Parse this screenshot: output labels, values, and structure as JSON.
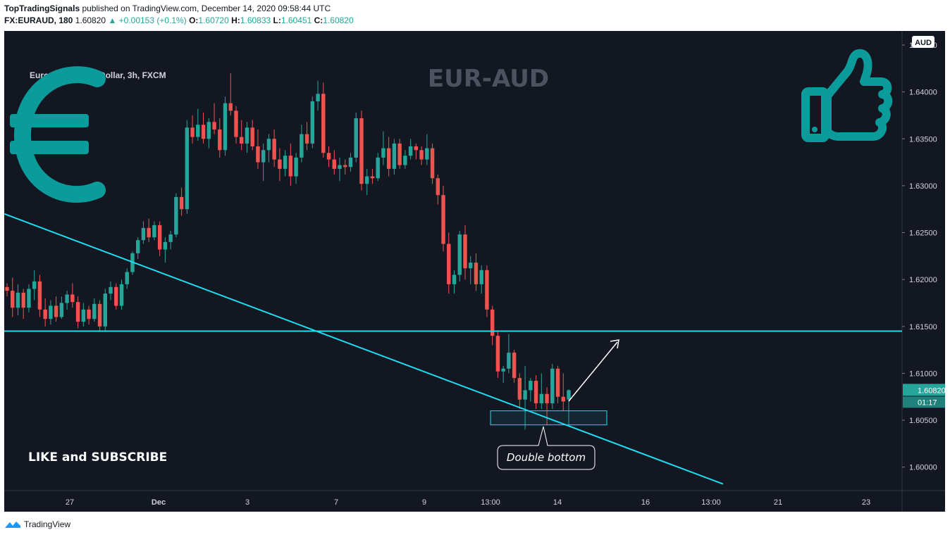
{
  "header": {
    "author": "TopTradingSignals",
    "published_text": "published on TradingView.com, December 14, 2020 09:58:44 UTC",
    "symbol": "FX:EURAUD, 180",
    "last": "1.60820",
    "change": "▲ +0.00153 (+0.1%)",
    "open_label": "O:",
    "open": "1.60720",
    "high_label": "H:",
    "high": "1.60833",
    "low_label": "L:",
    "low": "1.60451",
    "close_label": "C:",
    "close": "1.60820"
  },
  "chart_title": "Euro / Australian Dollar, 3h, FXCM",
  "watermark_text": "EUR-AUD",
  "like_text": "LIKE and SUBSCRIBE",
  "callout_text": "Double bottom",
  "price_tag": "1.60820",
  "countdown_tag": "01:17",
  "currency_label": "AUD",
  "footer_brand": "TradingView",
  "colors": {
    "background": "#131722",
    "up": "#26a69a",
    "down": "#ef5350",
    "trendline": "#1fdcf0",
    "euro_icon": "#0b9b9b",
    "thumb_icon": "#0b9b9b",
    "watermark": "#4d5260"
  },
  "chart_data": {
    "type": "candlestick",
    "title": "Euro / Australian Dollar, 3h, FXCM",
    "ylim": [
      1.5975,
      1.6465
    ],
    "y_ticks": [
      "1.64500",
      "1.64000",
      "1.63500",
      "1.63000",
      "1.62500",
      "1.62000",
      "1.61500",
      "1.61000",
      "1.60500",
      "1.60000"
    ],
    "x_ticks": [
      "27",
      "Dec",
      "3",
      "7",
      "9",
      "13:00",
      "14",
      "16",
      "13:00",
      "21",
      "23"
    ],
    "horizontal_level": 1.6145,
    "trendline": {
      "start_price": 1.627,
      "end_price": 1.5982
    },
    "support_zone": [
      1.6045,
      1.606
    ],
    "candles": [
      [
        1.6192,
        1.6196,
        1.6182,
        1.6188
      ],
      [
        1.6188,
        1.6202,
        1.616,
        1.617
      ],
      [
        1.617,
        1.6195,
        1.6162,
        1.6186
      ],
      [
        1.6186,
        1.619,
        1.6158,
        1.617
      ],
      [
        1.617,
        1.6195,
        1.6165,
        1.619
      ],
      [
        1.619,
        1.621,
        1.6178,
        1.6198
      ],
      [
        1.6198,
        1.6205,
        1.616,
        1.6168
      ],
      [
        1.6168,
        1.618,
        1.615,
        1.6158
      ],
      [
        1.6158,
        1.6178,
        1.6152,
        1.6172
      ],
      [
        1.6172,
        1.6182,
        1.6155,
        1.616
      ],
      [
        1.616,
        1.6182,
        1.6158,
        1.6175
      ],
      [
        1.6175,
        1.6188,
        1.6168,
        1.6184
      ],
      [
        1.6184,
        1.6196,
        1.617,
        1.6176
      ],
      [
        1.6176,
        1.6182,
        1.6148,
        1.6155
      ],
      [
        1.6155,
        1.6175,
        1.615,
        1.6168
      ],
      [
        1.6168,
        1.6172,
        1.6152,
        1.6158
      ],
      [
        1.6158,
        1.618,
        1.6155,
        1.6174
      ],
      [
        1.6174,
        1.6178,
        1.6145,
        1.615
      ],
      [
        1.615,
        1.619,
        1.6145,
        1.6185
      ],
      [
        1.6185,
        1.6198,
        1.6178,
        1.6192
      ],
      [
        1.6192,
        1.6196,
        1.6168,
        1.6172
      ],
      [
        1.6172,
        1.62,
        1.6168,
        1.6195
      ],
      [
        1.6195,
        1.6212,
        1.619,
        1.6208
      ],
      [
        1.6208,
        1.623,
        1.6205,
        1.6228
      ],
      [
        1.6228,
        1.6245,
        1.6222,
        1.6242
      ],
      [
        1.6242,
        1.6262,
        1.6238,
        1.6255
      ],
      [
        1.6255,
        1.6265,
        1.624,
        1.6245
      ],
      [
        1.6245,
        1.6262,
        1.6242,
        1.6258
      ],
      [
        1.6258,
        1.6262,
        1.6225,
        1.6232
      ],
      [
        1.6232,
        1.6245,
        1.6218,
        1.624
      ],
      [
        1.624,
        1.6252,
        1.6232,
        1.6248
      ],
      [
        1.6248,
        1.6292,
        1.6245,
        1.6288
      ],
      [
        1.6288,
        1.6298,
        1.6268,
        1.6275
      ],
      [
        1.6275,
        1.637,
        1.627,
        1.6362
      ],
      [
        1.6362,
        1.6375,
        1.6345,
        1.6352
      ],
      [
        1.6352,
        1.6382,
        1.6348,
        1.6365
      ],
      [
        1.6365,
        1.6378,
        1.6345,
        1.635
      ],
      [
        1.635,
        1.6372,
        1.634,
        1.6368
      ],
      [
        1.6368,
        1.6388,
        1.6355,
        1.636
      ],
      [
        1.636,
        1.6372,
        1.633,
        1.6338
      ],
      [
        1.6338,
        1.6395,
        1.6332,
        1.6388
      ],
      [
        1.6388,
        1.642,
        1.6375,
        1.638
      ],
      [
        1.638,
        1.6385,
        1.6345,
        1.6352
      ],
      [
        1.6352,
        1.637,
        1.6338,
        1.6345
      ],
      [
        1.6345,
        1.6368,
        1.6335,
        1.6362
      ],
      [
        1.6362,
        1.637,
        1.6338,
        1.6342
      ],
      [
        1.6342,
        1.636,
        1.6318,
        1.6325
      ],
      [
        1.6325,
        1.6345,
        1.6305,
        1.6338
      ],
      [
        1.6338,
        1.6355,
        1.6325,
        1.635
      ],
      [
        1.635,
        1.636,
        1.632,
        1.6328
      ],
      [
        1.6328,
        1.634,
        1.6305,
        1.6318
      ],
      [
        1.6318,
        1.6338,
        1.631,
        1.6332
      ],
      [
        1.6332,
        1.6345,
        1.63,
        1.631
      ],
      [
        1.631,
        1.6335,
        1.6302,
        1.633
      ],
      [
        1.633,
        1.6365,
        1.6325,
        1.6355
      ],
      [
        1.6355,
        1.6368,
        1.6338,
        1.6345
      ],
      [
        1.6345,
        1.6395,
        1.634,
        1.639
      ],
      [
        1.639,
        1.6412,
        1.638,
        1.6398
      ],
      [
        1.6398,
        1.641,
        1.633,
        1.6335
      ],
      [
        1.6335,
        1.6342,
        1.632,
        1.6328
      ],
      [
        1.6328,
        1.6338,
        1.6312,
        1.6318
      ],
      [
        1.6318,
        1.633,
        1.6305,
        1.6322
      ],
      [
        1.6322,
        1.6328,
        1.6312,
        1.632
      ],
      [
        1.632,
        1.6335,
        1.6315,
        1.633
      ],
      [
        1.633,
        1.6378,
        1.6325,
        1.6372
      ],
      [
        1.6372,
        1.638,
        1.6295,
        1.6302
      ],
      [
        1.6302,
        1.6318,
        1.629,
        1.631
      ],
      [
        1.631,
        1.6318,
        1.6302,
        1.6308
      ],
      [
        1.6308,
        1.6335,
        1.6305,
        1.633
      ],
      [
        1.633,
        1.6358,
        1.6322,
        1.634
      ],
      [
        1.634,
        1.6352,
        1.631,
        1.6318
      ],
      [
        1.6318,
        1.635,
        1.6312,
        1.6345
      ],
      [
        1.6345,
        1.635,
        1.6318,
        1.6322
      ],
      [
        1.6322,
        1.6338,
        1.6318,
        1.6332
      ],
      [
        1.6332,
        1.635,
        1.6328,
        1.6342
      ],
      [
        1.6342,
        1.6345,
        1.6328,
        1.6338
      ],
      [
        1.6338,
        1.6342,
        1.6322,
        1.6328
      ],
      [
        1.6328,
        1.6355,
        1.6322,
        1.634
      ],
      [
        1.634,
        1.6345,
        1.6302,
        1.6308
      ],
      [
        1.6308,
        1.6312,
        1.628,
        1.629
      ],
      [
        1.629,
        1.63,
        1.623,
        1.6238
      ],
      [
        1.6238,
        1.625,
        1.6185,
        1.6195
      ],
      [
        1.6195,
        1.621,
        1.6185,
        1.6205
      ],
      [
        1.6205,
        1.6252,
        1.6198,
        1.6248
      ],
      [
        1.6248,
        1.6258,
        1.62,
        1.6212
      ],
      [
        1.6212,
        1.6225,
        1.6195,
        1.6218
      ],
      [
        1.6218,
        1.6228,
        1.6188,
        1.6195
      ],
      [
        1.6195,
        1.6215,
        1.6185,
        1.621
      ],
      [
        1.621,
        1.6215,
        1.616,
        1.6168
      ],
      [
        1.6168,
        1.6172,
        1.613,
        1.614
      ],
      [
        1.614,
        1.6145,
        1.6095,
        1.6102
      ],
      [
        1.6102,
        1.6108,
        1.609,
        1.6105
      ],
      [
        1.6105,
        1.6142,
        1.61,
        1.6122
      ],
      [
        1.6122,
        1.6125,
        1.609,
        1.6095
      ],
      [
        1.6095,
        1.61,
        1.6062,
        1.6072
      ],
      [
        1.6072,
        1.6108,
        1.604,
        1.6082
      ],
      [
        1.6082,
        1.6095,
        1.607,
        1.6092
      ],
      [
        1.6092,
        1.6098,
        1.6062,
        1.6068
      ],
      [
        1.6068,
        1.61,
        1.6062,
        1.6078
      ],
      [
        1.6078,
        1.6085,
        1.6045,
        1.6068
      ],
      [
        1.6068,
        1.611,
        1.6062,
        1.6105
      ],
      [
        1.6105,
        1.6108,
        1.6068,
        1.6075
      ],
      [
        1.6075,
        1.61,
        1.606,
        1.607
      ],
      [
        1.6072,
        1.6083,
        1.6045,
        1.6082
      ]
    ]
  }
}
